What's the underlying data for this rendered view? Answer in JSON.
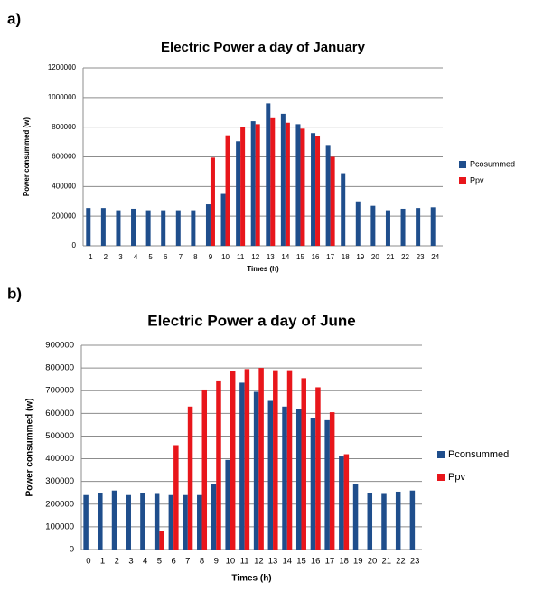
{
  "panel_labels": [
    "a)",
    "b)"
  ],
  "chart_data": [
    {
      "type": "bar",
      "title": "Electric Power a day of January",
      "x_label": "Times (h)",
      "y_label": "Power consummed (w)",
      "categories": [
        "1",
        "2",
        "3",
        "4",
        "5",
        "6",
        "7",
        "8",
        "9",
        "10",
        "11",
        "12",
        "13",
        "14",
        "15",
        "16",
        "17",
        "18",
        "19",
        "20",
        "21",
        "22",
        "23",
        "24"
      ],
      "series": [
        {
          "name": "Pcosummed",
          "color": "#1f4e8c",
          "values": [
            255000,
            255000,
            240000,
            250000,
            240000,
            240000,
            240000,
            240000,
            280000,
            350000,
            705000,
            840000,
            960000,
            890000,
            820000,
            760000,
            680000,
            490000,
            300000,
            270000,
            240000,
            250000,
            255000,
            260000
          ]
        },
        {
          "name": "Ppv",
          "color": "#e8161b",
          "values": [
            0,
            0,
            0,
            0,
            0,
            0,
            0,
            0,
            595000,
            745000,
            800000,
            820000,
            860000,
            830000,
            790000,
            740000,
            600000,
            0,
            0,
            0,
            0,
            0,
            0,
            0
          ]
        }
      ],
      "ylim": [
        0,
        1200000
      ],
      "yticks": [
        0,
        200000,
        400000,
        600000,
        800000,
        1000000,
        1200000
      ],
      "grid": true,
      "legend": "right"
    },
    {
      "type": "bar",
      "title": "Electric Power a day of June",
      "x_label": "Times (h)",
      "y_label": "Power consummed (w)",
      "categories": [
        "0",
        "1",
        "2",
        "3",
        "4",
        "5",
        "6",
        "7",
        "8",
        "9",
        "10",
        "11",
        "12",
        "13",
        "14",
        "15",
        "16",
        "17",
        "18",
        "19",
        "20",
        "21",
        "22",
        "23"
      ],
      "series": [
        {
          "name": "Pconsummed",
          "color": "#1f4e8c",
          "values": [
            240000,
            250000,
            260000,
            240000,
            250000,
            245000,
            240000,
            240000,
            240000,
            290000,
            395000,
            735000,
            695000,
            655000,
            630000,
            620000,
            580000,
            570000,
            410000,
            290000,
            250000,
            245000,
            255000,
            260000
          ]
        },
        {
          "name": "Ppv",
          "color": "#e8161b",
          "values": [
            0,
            0,
            0,
            0,
            0,
            80000,
            460000,
            630000,
            705000,
            745000,
            785000,
            795000,
            800000,
            790000,
            790000,
            755000,
            715000,
            605000,
            420000,
            0,
            0,
            0,
            0,
            0
          ]
        }
      ],
      "ylim": [
        0,
        900000
      ],
      "yticks": [
        0,
        100000,
        200000,
        300000,
        400000,
        500000,
        600000,
        700000,
        800000,
        900000
      ],
      "grid": true,
      "legend": "right"
    }
  ]
}
